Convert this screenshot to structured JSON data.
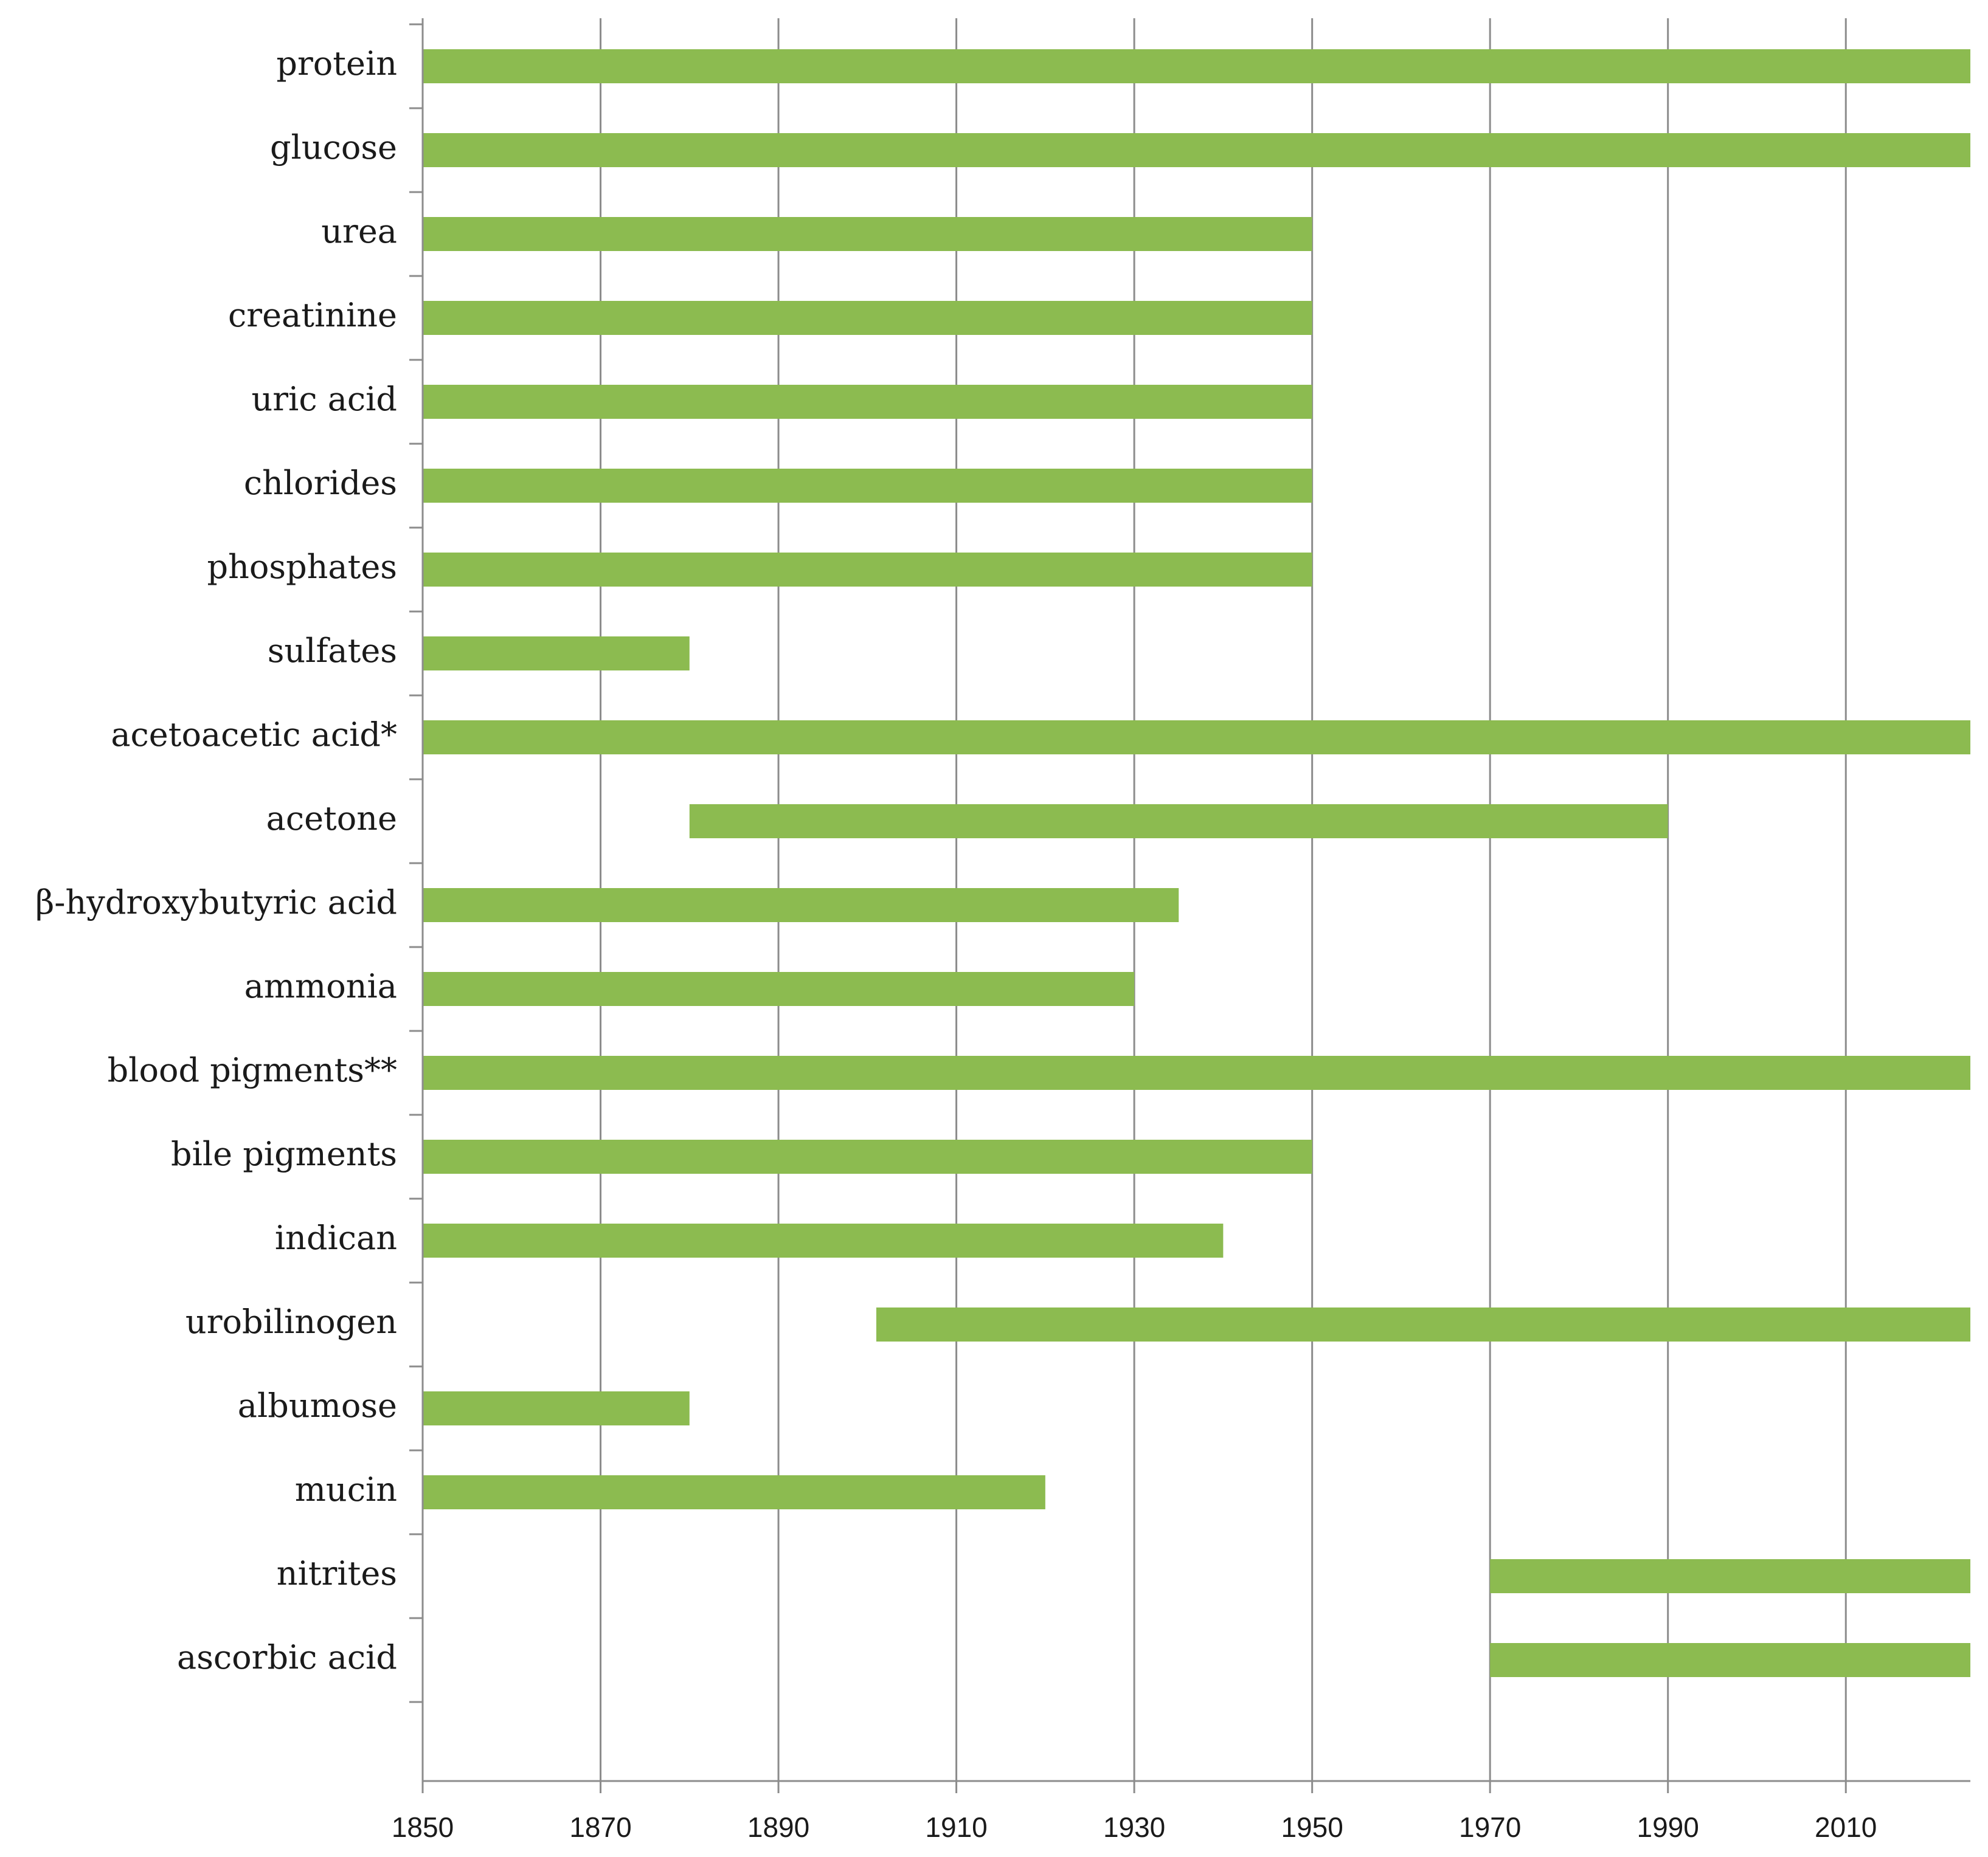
{
  "chart_data": {
    "type": "bar",
    "orientation": "horizontal-range",
    "categories": [
      "protein",
      "glucose",
      "urea",
      "creatinine",
      "uric acid",
      "chlorides",
      "phosphates",
      "sulfates",
      "acetoacetic acid*",
      "acetone",
      "β-hydroxybutyric acid",
      "ammonia",
      "blood pigments**",
      "bile pigments",
      "indican",
      "urobilinogen",
      "albumose",
      "mucin",
      "nitrites",
      "ascorbic acid"
    ],
    "series": [
      {
        "ranges": [
          [
            1850,
            2024
          ],
          [
            1850,
            2024
          ],
          [
            1850,
            1950
          ],
          [
            1850,
            1950
          ],
          [
            1850,
            1950
          ],
          [
            1850,
            1950
          ],
          [
            1850,
            1950
          ],
          [
            1850,
            1880
          ],
          [
            1850,
            2024
          ],
          [
            1880,
            1990
          ],
          [
            1850,
            1935
          ],
          [
            1850,
            1930
          ],
          [
            1850,
            2024
          ],
          [
            1850,
            1950
          ],
          [
            1850,
            1940
          ],
          [
            1901,
            2024
          ],
          [
            1850,
            1880
          ],
          [
            1850,
            1920
          ],
          [
            1970,
            2024
          ],
          [
            1970,
            2024
          ]
        ]
      }
    ],
    "xlim": [
      1850,
      2024
    ],
    "xticks": [
      1850,
      1870,
      1890,
      1910,
      1930,
      1950,
      1970,
      1990,
      2010
    ],
    "xtick_labels": [
      "1850",
      "1870",
      "1890",
      "1910",
      "1930",
      "1950",
      "1970",
      "1990",
      "2010"
    ],
    "grid": "vertical",
    "legend": "none",
    "bar_color": "#8cbb50",
    "grid_color": "#8c8c8c",
    "title": "",
    "xlabel": "",
    "ylabel": ""
  }
}
